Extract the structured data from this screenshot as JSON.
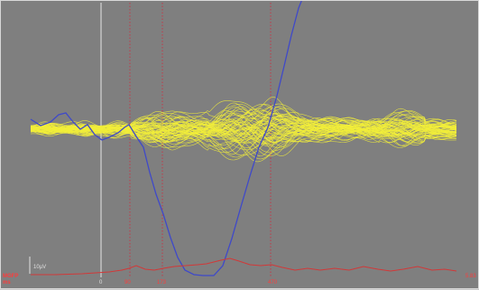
{
  "chart_data": {
    "type": "line",
    "time_markers": [
      {
        "label": "0",
        "kind": "onset",
        "color": "#e6e6e6"
      },
      {
        "label": "90",
        "kind": "cursor",
        "color": "#c0394a"
      },
      {
        "label": "173",
        "kind": "cursor",
        "color": "#c0394a"
      },
      {
        "label": "470",
        "kind": "cursor",
        "color": "#c0394a"
      }
    ],
    "scale_bar_label": "10µV",
    "gfp_label": [
      "MGFP",
      "ms"
    ],
    "end_value_label": "5.83",
    "series": [
      {
        "role": "channels",
        "color": "#f2ef3a",
        "count": 64
      },
      {
        "role": "average",
        "color": "#3f49c9"
      },
      {
        "role": "gfp",
        "color": "#d23838"
      }
    ]
  }
}
